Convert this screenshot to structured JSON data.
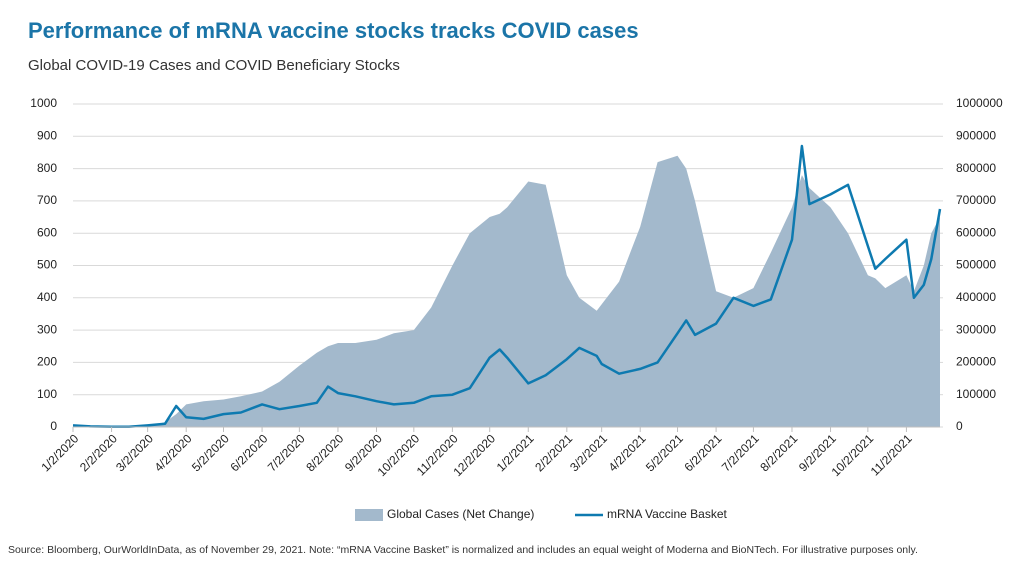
{
  "chart_data": {
    "type": "area-line",
    "title": "Performance of mRNA vaccine stocks tracks COVID cases",
    "subtitle": "Global COVID-19 Cases and COVID Beneficiary Stocks",
    "source": "Source: Bloomberg, OurWorldInData, as of November 29, 2021. Note: “mRNA Vaccine Basket” is normalized and includes an equal weight of Moderna and BioNTech. For illustrative purposes only.",
    "x": [
      "1/2/2020",
      "1/16/2020",
      "2/2/2020",
      "2/16/2020",
      "3/2/2020",
      "3/16/2020",
      "3/25/2020",
      "4/2/2020",
      "4/16/2020",
      "5/2/2020",
      "5/16/2020",
      "6/2/2020",
      "6/16/2020",
      "7/2/2020",
      "7/16/2020",
      "7/25/2020",
      "8/2/2020",
      "8/16/2020",
      "9/2/2020",
      "9/16/2020",
      "10/2/2020",
      "10/16/2020",
      "11/2/2020",
      "11/16/2020",
      "12/2/2020",
      "12/10/2020",
      "12/16/2020",
      "1/2/2021",
      "1/16/2021",
      "2/2/2021",
      "2/12/2021",
      "2/26/2021",
      "3/2/2021",
      "3/16/2021",
      "4/2/2021",
      "4/16/2021",
      "5/2/2021",
      "5/9/2021",
      "5/16/2021",
      "6/2/2021",
      "6/16/2021",
      "7/2/2021",
      "7/16/2021",
      "8/2/2021",
      "8/10/2021",
      "8/16/2021",
      "9/2/2021",
      "9/16/2021",
      "10/2/2021",
      "10/8/2021",
      "10/16/2021",
      "11/2/2021",
      "11/8/2021",
      "11/16/2021",
      "11/22/2021",
      "11/29/2021"
    ],
    "series": [
      {
        "name": "Global Cases (Net Change)",
        "kind": "area",
        "axis": "y2",
        "color": "#a3b9cc",
        "values": [
          0,
          0,
          2000,
          2000,
          2000,
          15000,
          40000,
          70000,
          80000,
          85000,
          95000,
          110000,
          140000,
          190000,
          230000,
          250000,
          260000,
          260000,
          270000,
          290000,
          300000,
          370000,
          500000,
          600000,
          650000,
          660000,
          680000,
          760000,
          750000,
          470000,
          400000,
          360000,
          380000,
          450000,
          620000,
          820000,
          840000,
          800000,
          700000,
          420000,
          400000,
          430000,
          540000,
          680000,
          780000,
          740000,
          680000,
          600000,
          470000,
          460000,
          430000,
          470000,
          420000,
          500000,
          600000,
          650000
        ]
      },
      {
        "name": "mRNA Vaccine Basket",
        "kind": "line",
        "color": "#0e7ab0",
        "values": [
          5,
          2,
          1,
          1,
          5,
          10,
          65,
          30,
          25,
          40,
          45,
          70,
          55,
          65,
          75,
          125,
          105,
          95,
          80,
          70,
          75,
          95,
          100,
          120,
          215,
          240,
          215,
          135,
          160,
          210,
          245,
          220,
          195,
          165,
          180,
          200,
          290,
          330,
          285,
          320,
          400,
          375,
          395,
          580,
          870,
          690,
          720,
          750,
          560,
          490,
          520,
          580,
          400,
          440,
          520,
          675
        ]
      }
    ],
    "xlim": [
      "1/2/2020",
      "11/29/2021"
    ],
    "xticks": [
      "1/2/2020",
      "2/2/2020",
      "3/2/2020",
      "4/2/2020",
      "5/2/2020",
      "6/2/2020",
      "7/2/2020",
      "8/2/2020",
      "9/2/2020",
      "10/2/2020",
      "11/2/2020",
      "12/2/2020",
      "1/2/2021",
      "2/2/2021",
      "3/2/2021",
      "4/2/2021",
      "5/2/2021",
      "6/2/2021",
      "7/2/2021",
      "8/2/2021",
      "9/2/2021",
      "10/2/2021",
      "11/2/2021"
    ],
    "ylim": [
      0,
      1000
    ],
    "yticks": [
      0,
      100,
      200,
      300,
      400,
      500,
      600,
      700,
      800,
      900,
      1000
    ],
    "y2lim": [
      0,
      1000000
    ],
    "y2ticks": [
      0,
      100000,
      200000,
      300000,
      400000,
      500000,
      600000,
      700000,
      800000,
      900000,
      1000000
    ],
    "grid": true
  }
}
